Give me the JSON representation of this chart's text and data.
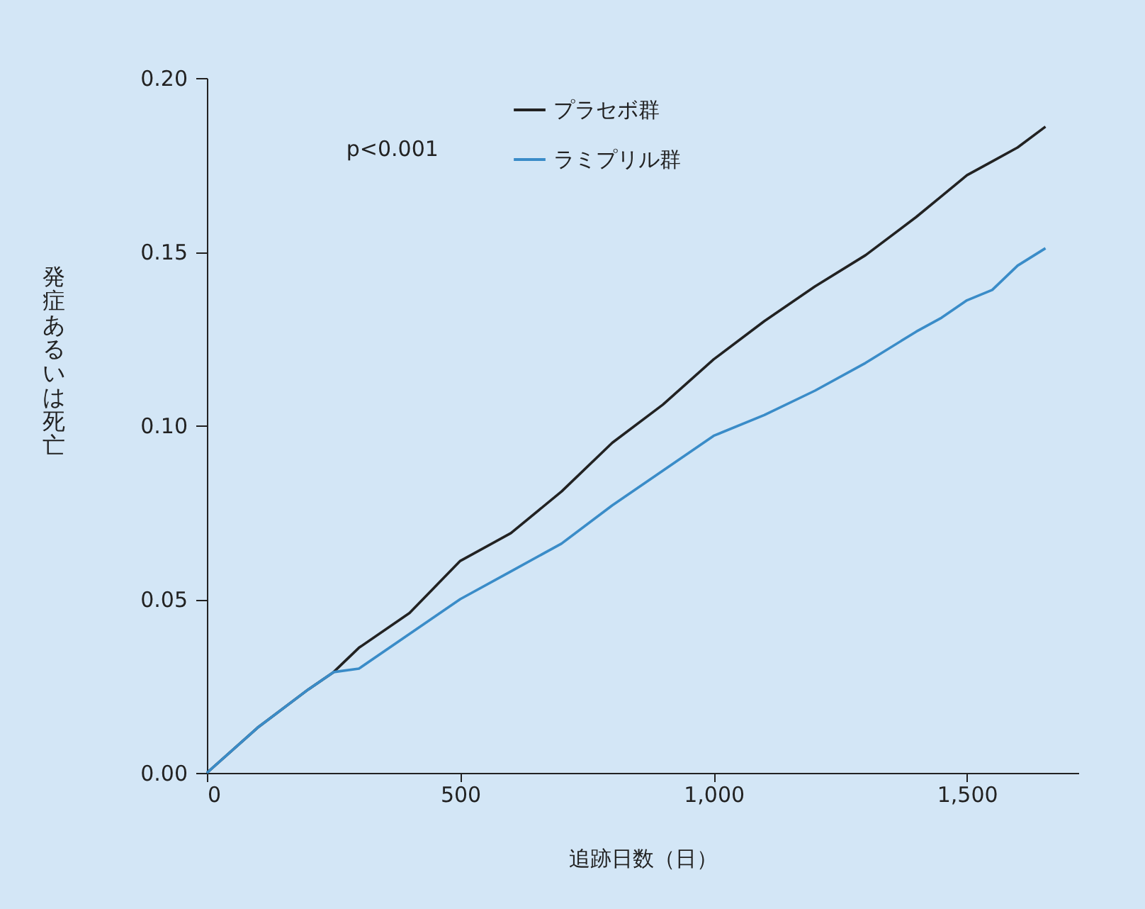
{
  "chart_data": {
    "type": "line",
    "xlabel": "追跡日数（日）",
    "ylabel": "発症あるいは死亡",
    "x": [
      0,
      100,
      200,
      250,
      300,
      400,
      500,
      600,
      700,
      800,
      900,
      1000,
      1100,
      1200,
      1300,
      1400,
      1450,
      1500,
      1550,
      1600,
      1655
    ],
    "series": [
      {
        "name": "プラセボ群",
        "color": "#222222",
        "values": [
          0,
          0.013,
          0.024,
          0.029,
          0.036,
          0.046,
          0.061,
          0.069,
          0.081,
          0.095,
          0.106,
          0.119,
          0.13,
          0.14,
          0.149,
          0.16,
          0.166,
          0.172,
          0.176,
          0.18,
          0.186
        ]
      },
      {
        "name": "ラミプリル群",
        "color": "#3a8cc8",
        "values": [
          0,
          0.013,
          0.024,
          0.029,
          0.03,
          0.04,
          0.05,
          0.058,
          0.066,
          0.077,
          0.087,
          0.097,
          0.103,
          0.11,
          0.118,
          0.127,
          0.131,
          0.136,
          0.139,
          0.146,
          0.151
        ]
      }
    ],
    "xlim": [
      0,
      1720
    ],
    "xticks": [
      0,
      {
        "value": 500,
        "label": "500"
      },
      {
        "value": 1000,
        "label": "1,000"
      },
      {
        "value": 1500,
        "label": "1,500"
      }
    ],
    "ylim": [
      0,
      0.2
    ],
    "yticks": [
      {
        "value": 0,
        "label": "0.00"
      },
      {
        "value": 0.05,
        "label": "0.05"
      },
      {
        "value": 0.1,
        "label": "0.10"
      },
      {
        "value": 0.15,
        "label": "0.15"
      },
      {
        "value": 0.2,
        "label": "0.20"
      }
    ],
    "grid": false,
    "legend": "top",
    "annotations": [
      "p<0.001"
    ]
  }
}
